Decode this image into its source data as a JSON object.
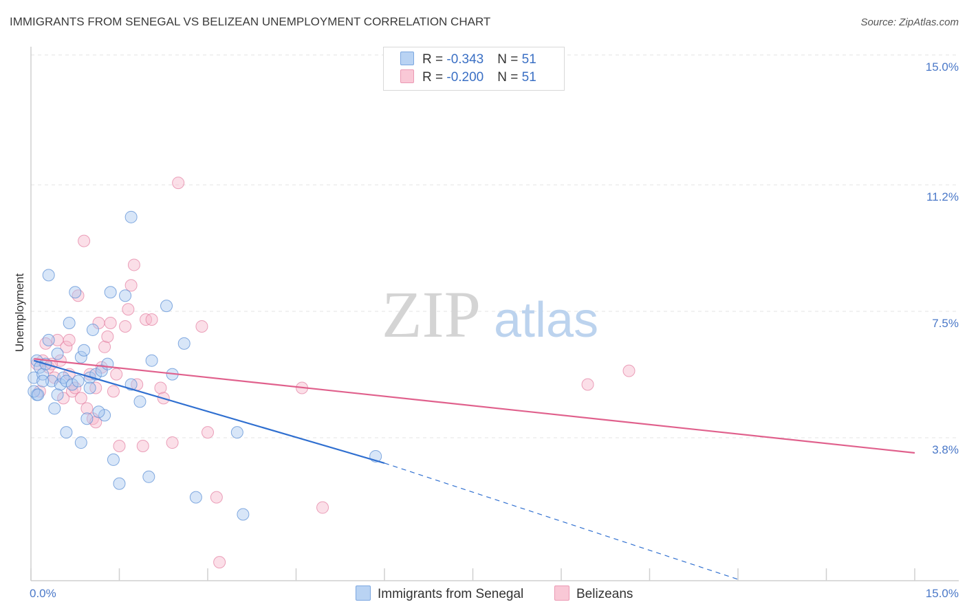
{
  "title": "IMMIGRANTS FROM SENEGAL VS BELIZEAN UNEMPLOYMENT CORRELATION CHART",
  "source": "Source: ZipAtlas.com",
  "watermark": {
    "part1": "ZIP",
    "part2": "atlas"
  },
  "legend": {
    "row1": {
      "r_label": "R = ",
      "r_value": "-0.343",
      "n_label": "N = ",
      "n_value": "51"
    },
    "row2": {
      "r_label": "R = ",
      "r_value": "-0.200",
      "n_label": "N = ",
      "n_value": "51"
    }
  },
  "bottom_legend": {
    "series1": "Immigrants from Senegal",
    "series2": "Belizeans"
  },
  "colors": {
    "blue_fill": "#a9c8f0",
    "blue_stroke": "#5b8fd6",
    "blue_line": "#2f6fd0",
    "pink_fill": "#f6b8cc",
    "pink_stroke": "#e483a4",
    "pink_line": "#e0608c",
    "tick_text": "#4a78c8",
    "grid": "#e3e3e3"
  },
  "chart_data": {
    "type": "scatter",
    "title": "IMMIGRANTS FROM SENEGAL VS BELIZEAN UNEMPLOYMENT CORRELATION CHART",
    "xlabel": "",
    "ylabel": "Unemployment",
    "xlim": [
      0,
      15
    ],
    "ylim": [
      0,
      15.5
    ],
    "x_tick_labels": {
      "left": "0.0%",
      "right": "15.0%"
    },
    "y_ticks": [
      {
        "value": 3.8,
        "label": "3.8%"
      },
      {
        "value": 7.5,
        "label": "7.5%"
      },
      {
        "value": 11.2,
        "label": "11.2%"
      },
      {
        "value": 15.0,
        "label": "15.0%"
      }
    ],
    "series": [
      {
        "name": "Immigrants from Senegal",
        "color": "blue",
        "R": -0.343,
        "N": 51,
        "trend": {
          "x0": 0.05,
          "y0": 6.4,
          "x1": 6.0,
          "y1": 3.4,
          "dash_to_x": 12.0,
          "dash_to_y": 0.0
        },
        "points": [
          [
            0.1,
            6.4
          ],
          [
            0.15,
            6.2
          ],
          [
            0.05,
            5.9
          ],
          [
            0.1,
            5.4
          ],
          [
            0.05,
            5.5
          ],
          [
            0.2,
            6.0
          ],
          [
            0.25,
            6.3
          ],
          [
            0.3,
            7.0
          ],
          [
            0.35,
            5.8
          ],
          [
            0.4,
            5.0
          ],
          [
            0.45,
            6.6
          ],
          [
            0.5,
            5.7
          ],
          [
            0.55,
            5.9
          ],
          [
            0.6,
            5.8
          ],
          [
            0.65,
            7.5
          ],
          [
            0.7,
            5.7
          ],
          [
            0.75,
            8.4
          ],
          [
            0.8,
            5.8
          ],
          [
            0.85,
            6.5
          ],
          [
            0.9,
            6.7
          ],
          [
            0.95,
            4.7
          ],
          [
            1.0,
            5.9
          ],
          [
            1.05,
            7.3
          ],
          [
            1.1,
            6.0
          ],
          [
            1.2,
            6.1
          ],
          [
            1.25,
            4.8
          ],
          [
            1.3,
            6.3
          ],
          [
            1.35,
            8.4
          ],
          [
            1.4,
            3.5
          ],
          [
            1.5,
            2.8
          ],
          [
            1.6,
            8.3
          ],
          [
            1.7,
            5.7
          ],
          [
            1.7,
            10.6
          ],
          [
            1.85,
            5.2
          ],
          [
            2.0,
            3.0
          ],
          [
            2.05,
            6.4
          ],
          [
            2.3,
            8.0
          ],
          [
            2.4,
            6.0
          ],
          [
            2.6,
            6.9
          ],
          [
            2.8,
            2.4
          ],
          [
            3.5,
            4.3
          ],
          [
            3.6,
            1.9
          ],
          [
            5.85,
            3.6
          ],
          [
            0.3,
            8.9
          ],
          [
            0.6,
            4.3
          ],
          [
            0.85,
            4.0
          ],
          [
            1.15,
            4.9
          ],
          [
            0.2,
            5.8
          ],
          [
            1.0,
            5.6
          ],
          [
            0.45,
            5.4
          ],
          [
            0.12,
            5.4
          ]
        ]
      },
      {
        "name": "Belizeans",
        "color": "pink",
        "R": -0.2,
        "N": 51,
        "trend": {
          "x0": 0.05,
          "y0": 6.45,
          "x1": 15.0,
          "y1": 3.7
        },
        "points": [
          [
            0.1,
            6.3
          ],
          [
            0.15,
            5.5
          ],
          [
            0.2,
            6.4
          ],
          [
            0.25,
            6.9
          ],
          [
            0.3,
            6.2
          ],
          [
            0.4,
            5.9
          ],
          [
            0.45,
            7.0
          ],
          [
            0.5,
            6.4
          ],
          [
            0.55,
            5.3
          ],
          [
            0.6,
            6.8
          ],
          [
            0.65,
            7.0
          ],
          [
            0.7,
            5.5
          ],
          [
            0.75,
            5.6
          ],
          [
            0.8,
            8.3
          ],
          [
            0.85,
            5.3
          ],
          [
            0.9,
            9.9
          ],
          [
            0.95,
            5.0
          ],
          [
            1.0,
            6.0
          ],
          [
            1.05,
            4.7
          ],
          [
            1.1,
            5.6
          ],
          [
            1.15,
            7.5
          ],
          [
            1.2,
            6.2
          ],
          [
            1.25,
            6.8
          ],
          [
            1.3,
            7.1
          ],
          [
            1.35,
            7.5
          ],
          [
            1.4,
            5.5
          ],
          [
            1.45,
            6.0
          ],
          [
            1.5,
            3.9
          ],
          [
            1.6,
            7.4
          ],
          [
            1.65,
            7.9
          ],
          [
            1.7,
            8.6
          ],
          [
            1.75,
            9.2
          ],
          [
            1.8,
            5.7
          ],
          [
            1.9,
            3.9
          ],
          [
            1.95,
            7.6
          ],
          [
            2.05,
            7.6
          ],
          [
            2.2,
            5.6
          ],
          [
            2.25,
            5.3
          ],
          [
            2.4,
            4.0
          ],
          [
            2.5,
            11.6
          ],
          [
            2.9,
            7.4
          ],
          [
            3.0,
            4.3
          ],
          [
            3.15,
            2.4
          ],
          [
            3.2,
            0.5
          ],
          [
            4.6,
            5.6
          ],
          [
            4.95,
            2.1
          ],
          [
            9.45,
            5.7
          ],
          [
            10.15,
            6.1
          ],
          [
            0.35,
            6.3
          ],
          [
            0.65,
            6.0
          ],
          [
            1.1,
            4.6
          ]
        ]
      }
    ]
  }
}
